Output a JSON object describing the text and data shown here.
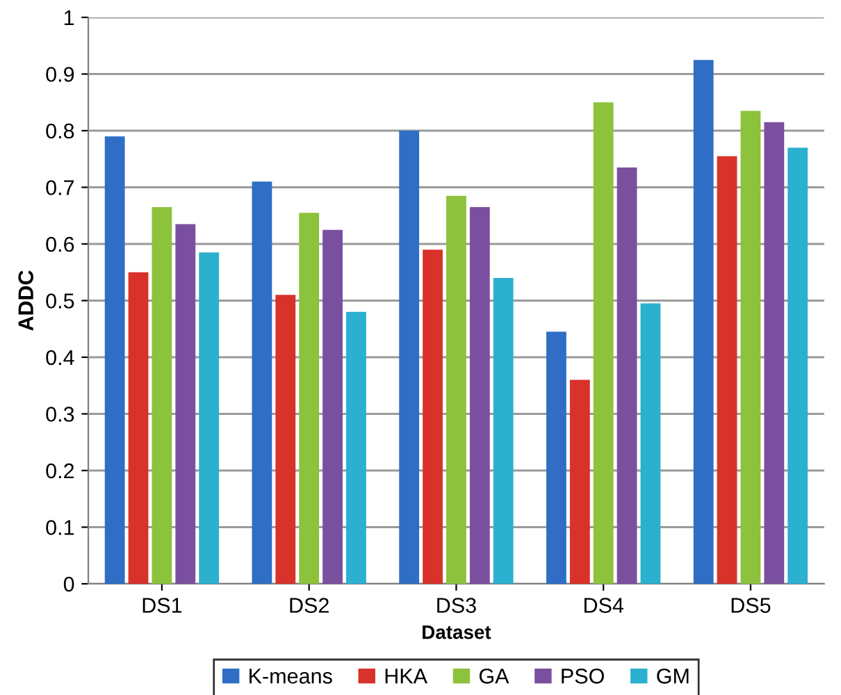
{
  "chart_data": {
    "type": "bar",
    "xlabel": "Dataset",
    "ylabel": "ADDC",
    "categories": [
      "DS1",
      "DS2",
      "DS3",
      "DS4",
      "DS5"
    ],
    "series": [
      {
        "name": "K-means",
        "color": "#2f6ec4",
        "values": [
          0.79,
          0.71,
          0.8,
          0.445,
          0.925
        ]
      },
      {
        "name": "HKA",
        "color": "#d8322b",
        "values": [
          0.55,
          0.51,
          0.59,
          0.36,
          0.755
        ]
      },
      {
        "name": "GA",
        "color": "#8cc23c",
        "values": [
          0.665,
          0.655,
          0.685,
          0.85,
          0.835
        ]
      },
      {
        "name": "PSO",
        "color": "#7b4f9f",
        "values": [
          0.635,
          0.625,
          0.665,
          0.735,
          0.815
        ]
      },
      {
        "name": "GM",
        "color": "#2bb0cf",
        "values": [
          0.585,
          0.48,
          0.54,
          0.495,
          0.77
        ]
      }
    ],
    "ylim": [
      0,
      1
    ],
    "yticks": [
      0,
      0.1,
      0.2,
      0.3,
      0.4,
      0.5,
      0.6,
      0.7,
      0.8,
      0.9,
      1
    ],
    "grid": "y",
    "legend": "bottom"
  }
}
